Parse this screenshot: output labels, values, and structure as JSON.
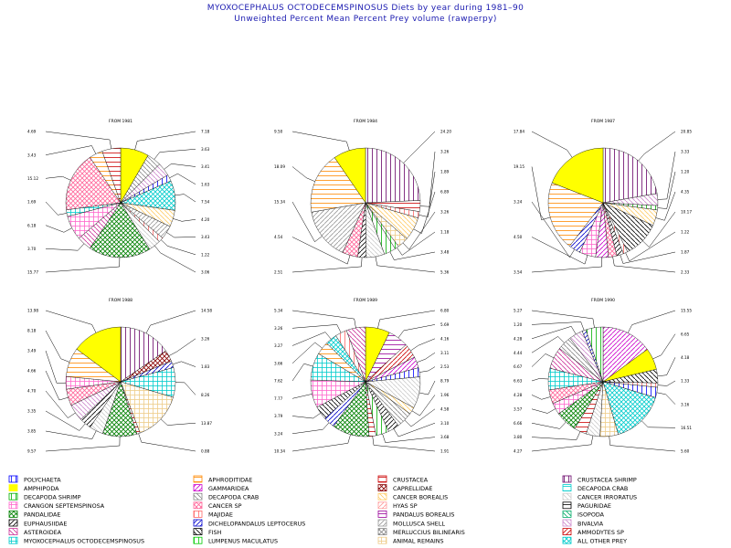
{
  "header": {
    "title": "MYOXOCEPHALUS OCTODECEMSPINOSUS Diets by year during 1981–90",
    "subtitle": "Unweighted Percent Mean Percent Prey  volume (rawperpy)"
  },
  "categories": [
    {
      "name": "POLYCHAETA",
      "color": "#0000ff",
      "pattern": "lineV",
      "swatch": "#0000ff"
    },
    {
      "name": "AMPHIPODA",
      "color": "#ffff00",
      "pattern": "solid",
      "swatch": "#ffff00"
    },
    {
      "name": "DECAPODA SHRIMP",
      "color": "#00b000",
      "pattern": "lineV",
      "swatch": "#00b000"
    },
    {
      "name": "CRANGON SEPTEMSPINOSA",
      "color": "#ff66cc",
      "pattern": "grid",
      "swatch": "#ff66cc"
    },
    {
      "name": "PANDALIDAE",
      "color": "#008000",
      "pattern": "crosshatch",
      "swatch": "#008000"
    },
    {
      "name": "EUPHAUSIIDAE",
      "color": "#000000",
      "pattern": "lineD1",
      "swatch": "#000000"
    },
    {
      "name": "ASTEROIDEA",
      "color": "#cc3399",
      "pattern": "lineD2",
      "swatch": "#cc3399"
    },
    {
      "name": "MYOXOCEPHALUS OCTODECEMSPINOSUS",
      "color": "#00cccc",
      "pattern": "grid",
      "swatch": "#00cccc"
    },
    {
      "name": "APHRODITIDAE",
      "color": "#ff8800",
      "pattern": "lineH",
      "swatch": "#ff8800"
    },
    {
      "name": "GAMMARIDEA",
      "color": "#cc00cc",
      "pattern": "lineD1",
      "swatch": "#cc00cc"
    },
    {
      "name": "DECAPODA CRAB",
      "color": "#888888",
      "pattern": "lineD2",
      "swatch": "#888888"
    },
    {
      "name": "CANCER SP",
      "color": "#ff6699",
      "pattern": "crosshatch",
      "swatch": "#ff6699"
    },
    {
      "name": "MAJIDAE",
      "color": "#ff6666",
      "pattern": "lineV",
      "swatch": "#ff6666"
    },
    {
      "name": "DICHELOPANDALUS LEPTOCERUS",
      "color": "#0000cc",
      "pattern": "lineD1",
      "swatch": "#0000cc"
    },
    {
      "name": "FISH",
      "color": "#000000",
      "pattern": "lineD2",
      "swatch": "#000000"
    },
    {
      "name": "LUMPENUS MACULATUS",
      "color": "#00cc00",
      "pattern": "lineV",
      "swatch": "#00cc00"
    },
    {
      "name": "CRUSTACEA",
      "color": "#cc0000",
      "pattern": "lineH",
      "swatch": "#cc0000"
    },
    {
      "name": "CAPRELLIDAE",
      "color": "#880000",
      "pattern": "crosshatch",
      "swatch": "#880000"
    },
    {
      "name": "CANCER BOREALIS",
      "color": "#ffcc66",
      "pattern": "lineD2",
      "swatch": "#ffcc66"
    },
    {
      "name": "HYAS SP",
      "color": "#ff9999",
      "pattern": "lineD1",
      "swatch": "#ff9999"
    },
    {
      "name": "PANDALUS BOREALIS",
      "color": "#990099",
      "pattern": "lineH",
      "swatch": "#990099"
    },
    {
      "name": "MOLLUSCA SHELL",
      "color": "#999999",
      "pattern": "lineD1",
      "swatch": "#999999"
    },
    {
      "name": "MERLUCCIUS BILINEARIS",
      "color": "#888888",
      "pattern": "crosshatch",
      "swatch": "#888888"
    },
    {
      "name": "ANIMAL REMAINS",
      "color": "#eecc88",
      "pattern": "grid",
      "swatch": "#eecc88"
    },
    {
      "name": "CRUSTACEA SHRIMP",
      "color": "#660066",
      "pattern": "lineV",
      "swatch": "#660066"
    },
    {
      "name": "DECAPODA CRAB",
      "color": "#00cccc",
      "pattern": "lineH",
      "swatch": "#00cccc"
    },
    {
      "name": "CANCER IRRORATUS",
      "color": "#cccccc",
      "pattern": "lineD2",
      "swatch": "#cccccc"
    },
    {
      "name": "PAGURIDAE",
      "color": "#000000",
      "pattern": "lineH",
      "swatch": "#000000"
    },
    {
      "name": "ISOPODA",
      "color": "#00aa66",
      "pattern": "lineD2",
      "swatch": "#00aa66"
    },
    {
      "name": "BIVALVIA",
      "color": "#cc88cc",
      "pattern": "lineD2",
      "swatch": "#cc88cc"
    },
    {
      "name": "AMMODYTES SP",
      "color": "#cc0000",
      "pattern": "lineD1",
      "swatch": "#cc0000"
    },
    {
      "name": "ALL OTHER PREY",
      "color": "#00cccc",
      "pattern": "crosshatch",
      "swatch": "#00cccc"
    }
  ],
  "chart_data": [
    {
      "type": "pie",
      "title": "FROM 1981",
      "slices": [
        {
          "category": 1,
          "value": 7.18,
          "label": "7.18"
        },
        {
          "category": 10,
          "value": 3.63,
          "label": "3.63"
        },
        {
          "category": 29,
          "value": 3.41,
          "label": "3.41"
        },
        {
          "category": 0,
          "value": 1.63,
          "label": "1.63"
        },
        {
          "category": 31,
          "value": 7.54,
          "label": "7.54"
        },
        {
          "category": 18,
          "value": 4.2,
          "label": "4.20"
        },
        {
          "category": 21,
          "value": 3.43,
          "label": "3.43"
        },
        {
          "category": 12,
          "value": 1.22,
          "label": "1.22"
        },
        {
          "category": 26,
          "value": 3.06,
          "label": "3.06"
        },
        {
          "category": 4,
          "value": 15.77,
          "label": "15.77"
        },
        {
          "category": 6,
          "value": 3.7,
          "label": "3.70"
        },
        {
          "category": 3,
          "value": 6.18,
          "label": "6.18"
        },
        {
          "category": 7,
          "value": 1.69,
          "label": "1.69"
        },
        {
          "category": 11,
          "value": 15.12,
          "label": "15.12"
        },
        {
          "category": 8,
          "value": 3.43,
          "label": "3.43"
        },
        {
          "category": 16,
          "value": 4.69,
          "label": "4.69"
        }
      ]
    },
    {
      "type": "pie",
      "title": "FROM 1984",
      "slices": [
        {
          "category": 24,
          "value": 24.2,
          "label": "24.20"
        },
        {
          "category": 16,
          "value": 3.26,
          "label": "3.26"
        },
        {
          "category": 12,
          "value": 1.89,
          "label": "1.89"
        },
        {
          "category": 18,
          "value": 6.89,
          "label": "6.89"
        },
        {
          "category": 23,
          "value": 3.26,
          "label": "3.26"
        },
        {
          "category": 15,
          "value": 1.18,
          "label": "1.18"
        },
        {
          "category": 2,
          "value": 3.48,
          "label": "3.48"
        },
        {
          "category": 26,
          "value": 5.36,
          "label": "5.36"
        },
        {
          "category": 5,
          "value": 2.51,
          "label": "2.51"
        },
        {
          "category": 11,
          "value": 4.54,
          "label": "4.54"
        },
        {
          "category": 21,
          "value": 15.34,
          "label": "15.34"
        },
        {
          "category": 8,
          "value": 18.09,
          "label": "18.09"
        },
        {
          "category": 1,
          "value": 9.5,
          "label": "9.50"
        }
      ]
    },
    {
      "type": "pie",
      "title": "FROM 1987",
      "slices": [
        {
          "category": 24,
          "value": 20.85,
          "label": "20.85"
        },
        {
          "category": 29,
          "value": 3.33,
          "label": "3.33"
        },
        {
          "category": 2,
          "value": 1.2,
          "label": "1.20"
        },
        {
          "category": 18,
          "value": 4.35,
          "label": "4.35"
        },
        {
          "category": 14,
          "value": 10.17,
          "label": "10.17"
        },
        {
          "category": 12,
          "value": 1.22,
          "label": "1.22"
        },
        {
          "category": 5,
          "value": 1.87,
          "label": "1.87"
        },
        {
          "category": 11,
          "value": 2.33,
          "label": "2.33"
        },
        {
          "category": 9,
          "value": 3.54,
          "label": "3.54"
        },
        {
          "category": 3,
          "value": 4.5,
          "label": "4.50"
        },
        {
          "category": 13,
          "value": 3.24,
          "label": "3.24"
        },
        {
          "category": 8,
          "value": 19.15,
          "label": "19.15"
        },
        {
          "category": 1,
          "value": 17.84,
          "label": "17.84"
        }
      ]
    },
    {
      "type": "pie",
      "title": "FROM 1988",
      "slices": [
        {
          "category": 24,
          "value": 14.58,
          "label": "14.58"
        },
        {
          "category": 17,
          "value": 3.26,
          "label": "3.26"
        },
        {
          "category": 13,
          "value": 1.83,
          "label": "1.83"
        },
        {
          "category": 7,
          "value": 8.26,
          "label": "8.26"
        },
        {
          "category": 23,
          "value": 13.87,
          "label": "13.87"
        },
        {
          "category": 16,
          "value": 0.88,
          "label": "0.88"
        },
        {
          "category": 4,
          "value": 9.57,
          "label": "9.57"
        },
        {
          "category": 26,
          "value": 3.85,
          "label": "3.85"
        },
        {
          "category": 5,
          "value": 3.35,
          "label": "3.35"
        },
        {
          "category": 29,
          "value": 4.7,
          "label": "4.70"
        },
        {
          "category": 11,
          "value": 4.66,
          "label": "4.66"
        },
        {
          "category": 3,
          "value": 3.49,
          "label": "3.49"
        },
        {
          "category": 8,
          "value": 8.18,
          "label": "8.18"
        },
        {
          "category": 1,
          "value": 13.98,
          "label": "13.98"
        }
      ]
    },
    {
      "type": "pie",
      "title": "FROM 1989",
      "slices": [
        {
          "category": 1,
          "value": 6.8,
          "label": "6.80"
        },
        {
          "category": 20,
          "value": 5.69,
          "label": "5.69"
        },
        {
          "category": 30,
          "value": 4.16,
          "label": "4.16"
        },
        {
          "category": 9,
          "value": 3.11,
          "label": "3.11"
        },
        {
          "category": 0,
          "value": 2.53,
          "label": "2.53"
        },
        {
          "category": 26,
          "value": 8.79,
          "label": "8.79"
        },
        {
          "category": 18,
          "value": 1.96,
          "label": "1.96"
        },
        {
          "category": 10,
          "value": 4.58,
          "label": "4.58"
        },
        {
          "category": 5,
          "value": 3.1,
          "label": "3.10"
        },
        {
          "category": 2,
          "value": 3.68,
          "label": "3.68"
        },
        {
          "category": 16,
          "value": 1.91,
          "label": "1.91"
        },
        {
          "category": 4,
          "value": 10.34,
          "label": "10.34"
        },
        {
          "category": 13,
          "value": 3.24,
          "label": "3.24"
        },
        {
          "category": 14,
          "value": 3.79,
          "label": "3.79"
        },
        {
          "category": 3,
          "value": 7.77,
          "label": "7.77"
        },
        {
          "category": 7,
          "value": 7.62,
          "label": "7.62"
        },
        {
          "category": 8,
          "value": 3.66,
          "label": "3.66"
        },
        {
          "category": 31,
          "value": 3.27,
          "label": "3.27"
        },
        {
          "category": 12,
          "value": 3.26,
          "label": "3.26"
        },
        {
          "category": 6,
          "value": 5.34,
          "label": "5.34"
        }
      ]
    },
    {
      "type": "pie",
      "title": "FROM 1990",
      "slices": [
        {
          "category": 9,
          "value": 15.55,
          "label": "15.55"
        },
        {
          "category": 1,
          "value": 6.65,
          "label": "6.65"
        },
        {
          "category": 14,
          "value": 4.18,
          "label": "4.18"
        },
        {
          "category": 12,
          "value": 1.33,
          "label": "1.33"
        },
        {
          "category": 0,
          "value": 3.16,
          "label": "3.16"
        },
        {
          "category": 31,
          "value": 16.51,
          "label": "16.51"
        },
        {
          "category": 23,
          "value": 5.6,
          "label": "5.60"
        },
        {
          "category": 26,
          "value": 4.27,
          "label": "4.27"
        },
        {
          "category": 16,
          "value": 3.8,
          "label": "3.80"
        },
        {
          "category": 4,
          "value": 6.66,
          "label": "6.66"
        },
        {
          "category": 3,
          "value": 3.57,
          "label": "3.57"
        },
        {
          "category": 11,
          "value": 4.28,
          "label": "4.28"
        },
        {
          "category": 7,
          "value": 6.63,
          "label": "6.63"
        },
        {
          "category": 6,
          "value": 6.67,
          "label": "6.67"
        },
        {
          "category": 10,
          "value": 4.44,
          "label": "4.44"
        },
        {
          "category": 29,
          "value": 4.28,
          "label": "4.28"
        },
        {
          "category": 13,
          "value": 1.2,
          "label": "1.20"
        },
        {
          "category": 2,
          "value": 5.27,
          "label": "5.27"
        }
      ]
    }
  ]
}
